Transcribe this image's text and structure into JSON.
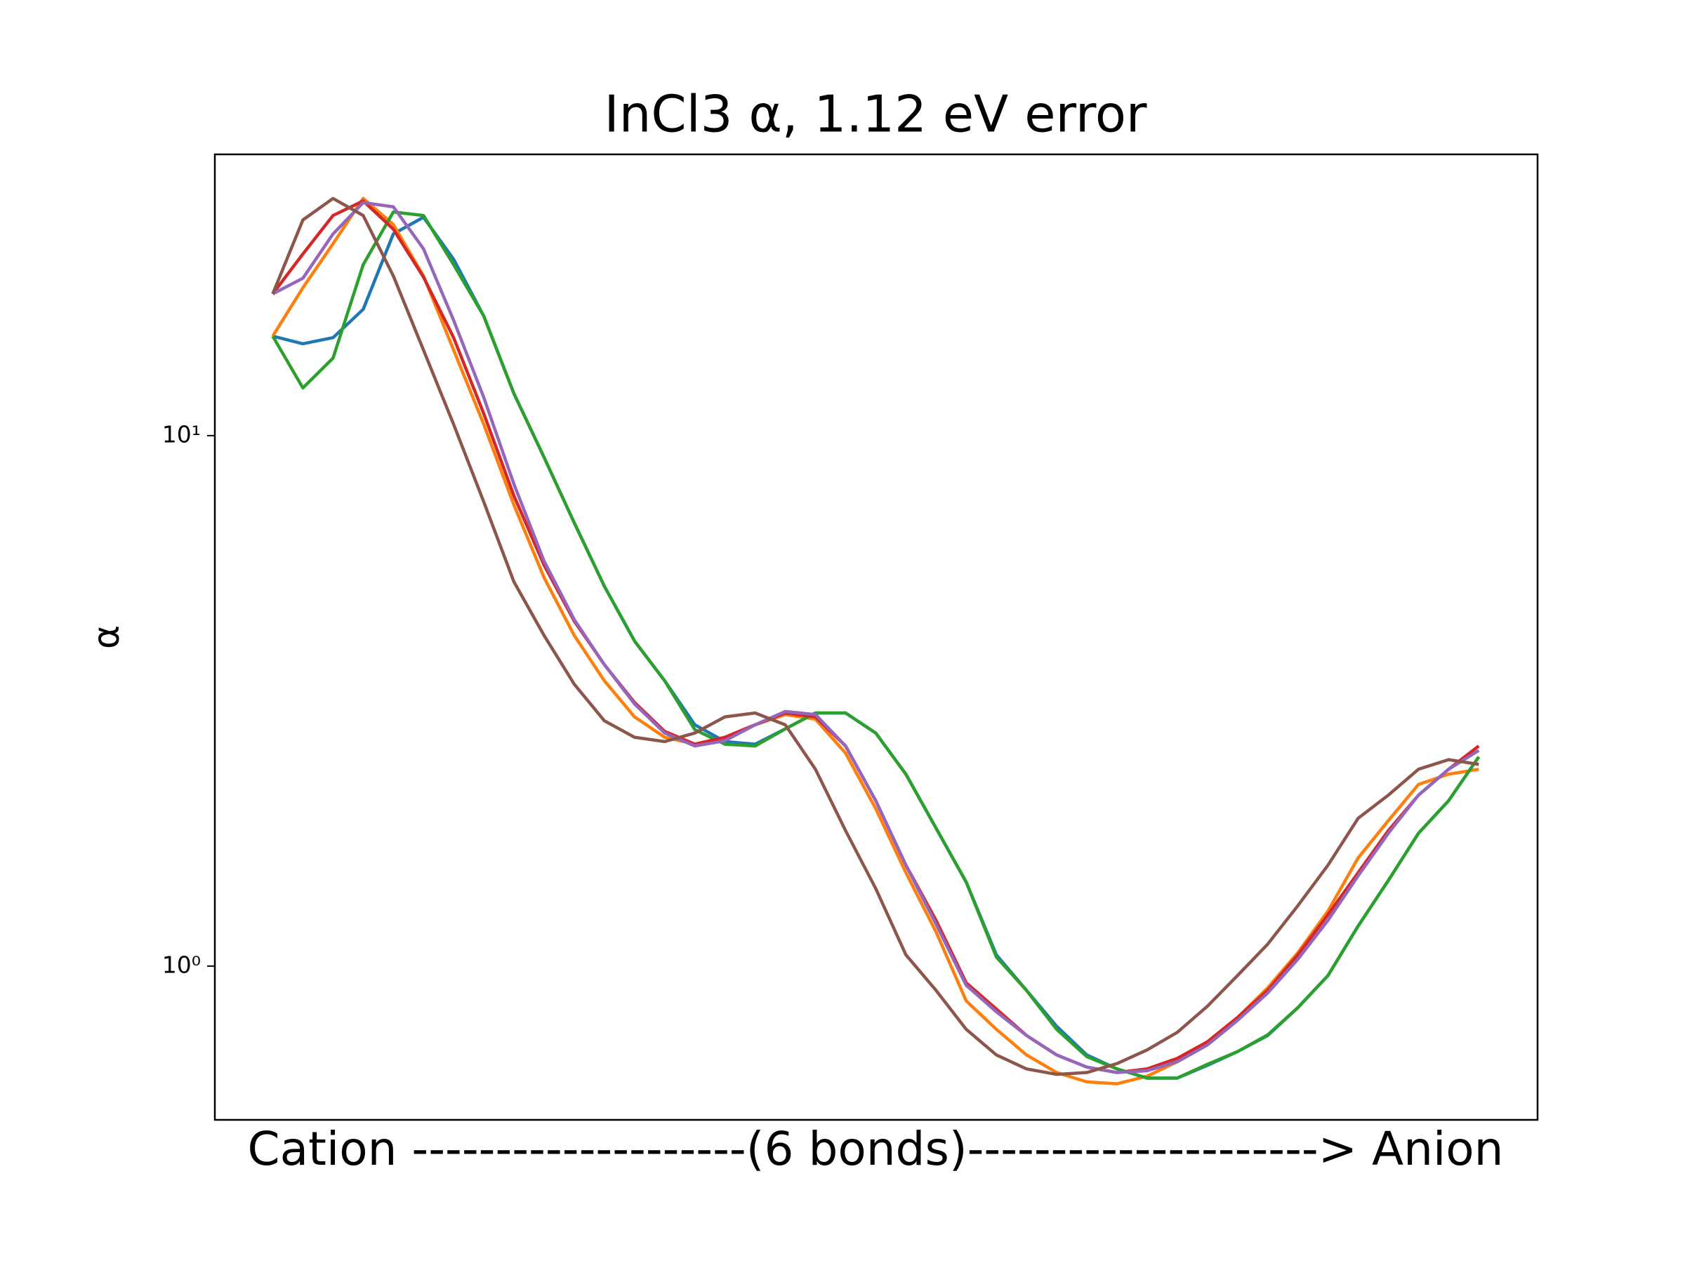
{
  "chart_data": {
    "type": "line",
    "title": "InCl3 α, 1.12 eV error",
    "xlabel": "Cation --------------------(6 bonds)---------------------> Anion",
    "ylabel": "α",
    "log_y": true,
    "x": [
      0,
      1,
      2,
      3,
      4,
      5,
      6,
      7,
      8,
      9,
      10,
      11,
      12,
      13,
      14,
      15,
      16,
      17,
      18,
      19,
      20,
      21,
      22,
      23,
      24,
      25,
      26,
      27,
      28,
      29,
      30,
      31,
      32,
      33,
      34,
      35,
      36,
      37,
      38,
      39,
      40
    ],
    "xlim": [
      -1.92,
      41.95
    ],
    "ylim": [
      0.513,
      33.9
    ],
    "yticks": [
      {
        "value": 1,
        "label": "10⁰"
      },
      {
        "value": 10,
        "label": "10¹"
      }
    ],
    "series": [
      {
        "color": "#1f77b4",
        "values": [
          15.4,
          14.9,
          15.3,
          17.3,
          24,
          25.8,
          21.5,
          16.8,
          12,
          9.1,
          6.85,
          5.2,
          4.1,
          3.45,
          2.85,
          2.65,
          2.62,
          2.8,
          3.0,
          3.0,
          2.75,
          2.3,
          1.82,
          1.44,
          1.05,
          0.9,
          0.77,
          0.68,
          0.64,
          0.615,
          0.615,
          0.65,
          0.69,
          0.74,
          0.835,
          0.96,
          1.19,
          1.45,
          1.78,
          2.05,
          2.48
        ]
      },
      {
        "color": "#ff7f0e",
        "values": [
          15.4,
          19,
          23,
          28,
          25,
          20,
          14.5,
          10.5,
          7.4,
          5.4,
          4.2,
          3.45,
          2.95,
          2.7,
          2.62,
          2.7,
          2.85,
          2.98,
          2.92,
          2.52,
          1.98,
          1.5,
          1.16,
          0.86,
          0.76,
          0.68,
          0.63,
          0.605,
          0.6,
          0.62,
          0.66,
          0.72,
          0.8,
          0.91,
          1.06,
          1.27,
          1.6,
          1.88,
          2.2,
          2.3,
          2.35
        ]
      },
      {
        "color": "#2ca02c",
        "values": [
          15.4,
          12.3,
          14,
          21,
          26.4,
          26,
          21,
          16.8,
          12,
          9.1,
          6.85,
          5.2,
          4.1,
          3.45,
          2.79,
          2.62,
          2.6,
          2.8,
          3.0,
          3.0,
          2.75,
          2.3,
          1.82,
          1.44,
          1.04,
          0.9,
          0.76,
          0.675,
          0.64,
          0.615,
          0.615,
          0.653,
          0.69,
          0.742,
          0.835,
          0.96,
          1.19,
          1.45,
          1.78,
          2.05,
          2.48
        ]
      },
      {
        "color": "#d62728",
        "values": [
          18.5,
          22,
          26,
          27.7,
          24.5,
          19.9,
          15.3,
          11,
          7.7,
          5.7,
          4.47,
          3.7,
          3.14,
          2.77,
          2.62,
          2.7,
          2.85,
          3.0,
          2.95,
          2.6,
          2.05,
          1.55,
          1.22,
          0.93,
          0.83,
          0.74,
          0.68,
          0.645,
          0.63,
          0.64,
          0.67,
          0.72,
          0.8,
          0.9,
          1.05,
          1.25,
          1.5,
          1.8,
          2.1,
          2.35,
          2.6
        ]
      },
      {
        "color": "#9467bd",
        "values": [
          18.5,
          19.8,
          24,
          27.5,
          27,
          22.5,
          16.5,
          11.8,
          8.1,
          5.8,
          4.5,
          3.7,
          3.12,
          2.75,
          2.6,
          2.66,
          2.85,
          3.02,
          2.98,
          2.6,
          2.05,
          1.55,
          1.2,
          0.92,
          0.82,
          0.74,
          0.68,
          0.645,
          0.63,
          0.635,
          0.66,
          0.71,
          0.79,
          0.89,
          1.03,
          1.22,
          1.48,
          1.78,
          2.1,
          2.35,
          2.55
        ]
      },
      {
        "color": "#8c564b",
        "values": [
          18.5,
          25.5,
          28,
          26,
          20,
          14.5,
          10.5,
          7.5,
          5.3,
          4.2,
          3.4,
          2.9,
          2.7,
          2.65,
          2.75,
          2.95,
          3.0,
          2.85,
          2.35,
          1.8,
          1.4,
          1.05,
          0.9,
          0.76,
          0.68,
          0.64,
          0.625,
          0.63,
          0.655,
          0.695,
          0.75,
          0.84,
          0.96,
          1.1,
          1.3,
          1.55,
          1.9,
          2.1,
          2.35,
          2.45,
          2.4
        ]
      }
    ]
  }
}
